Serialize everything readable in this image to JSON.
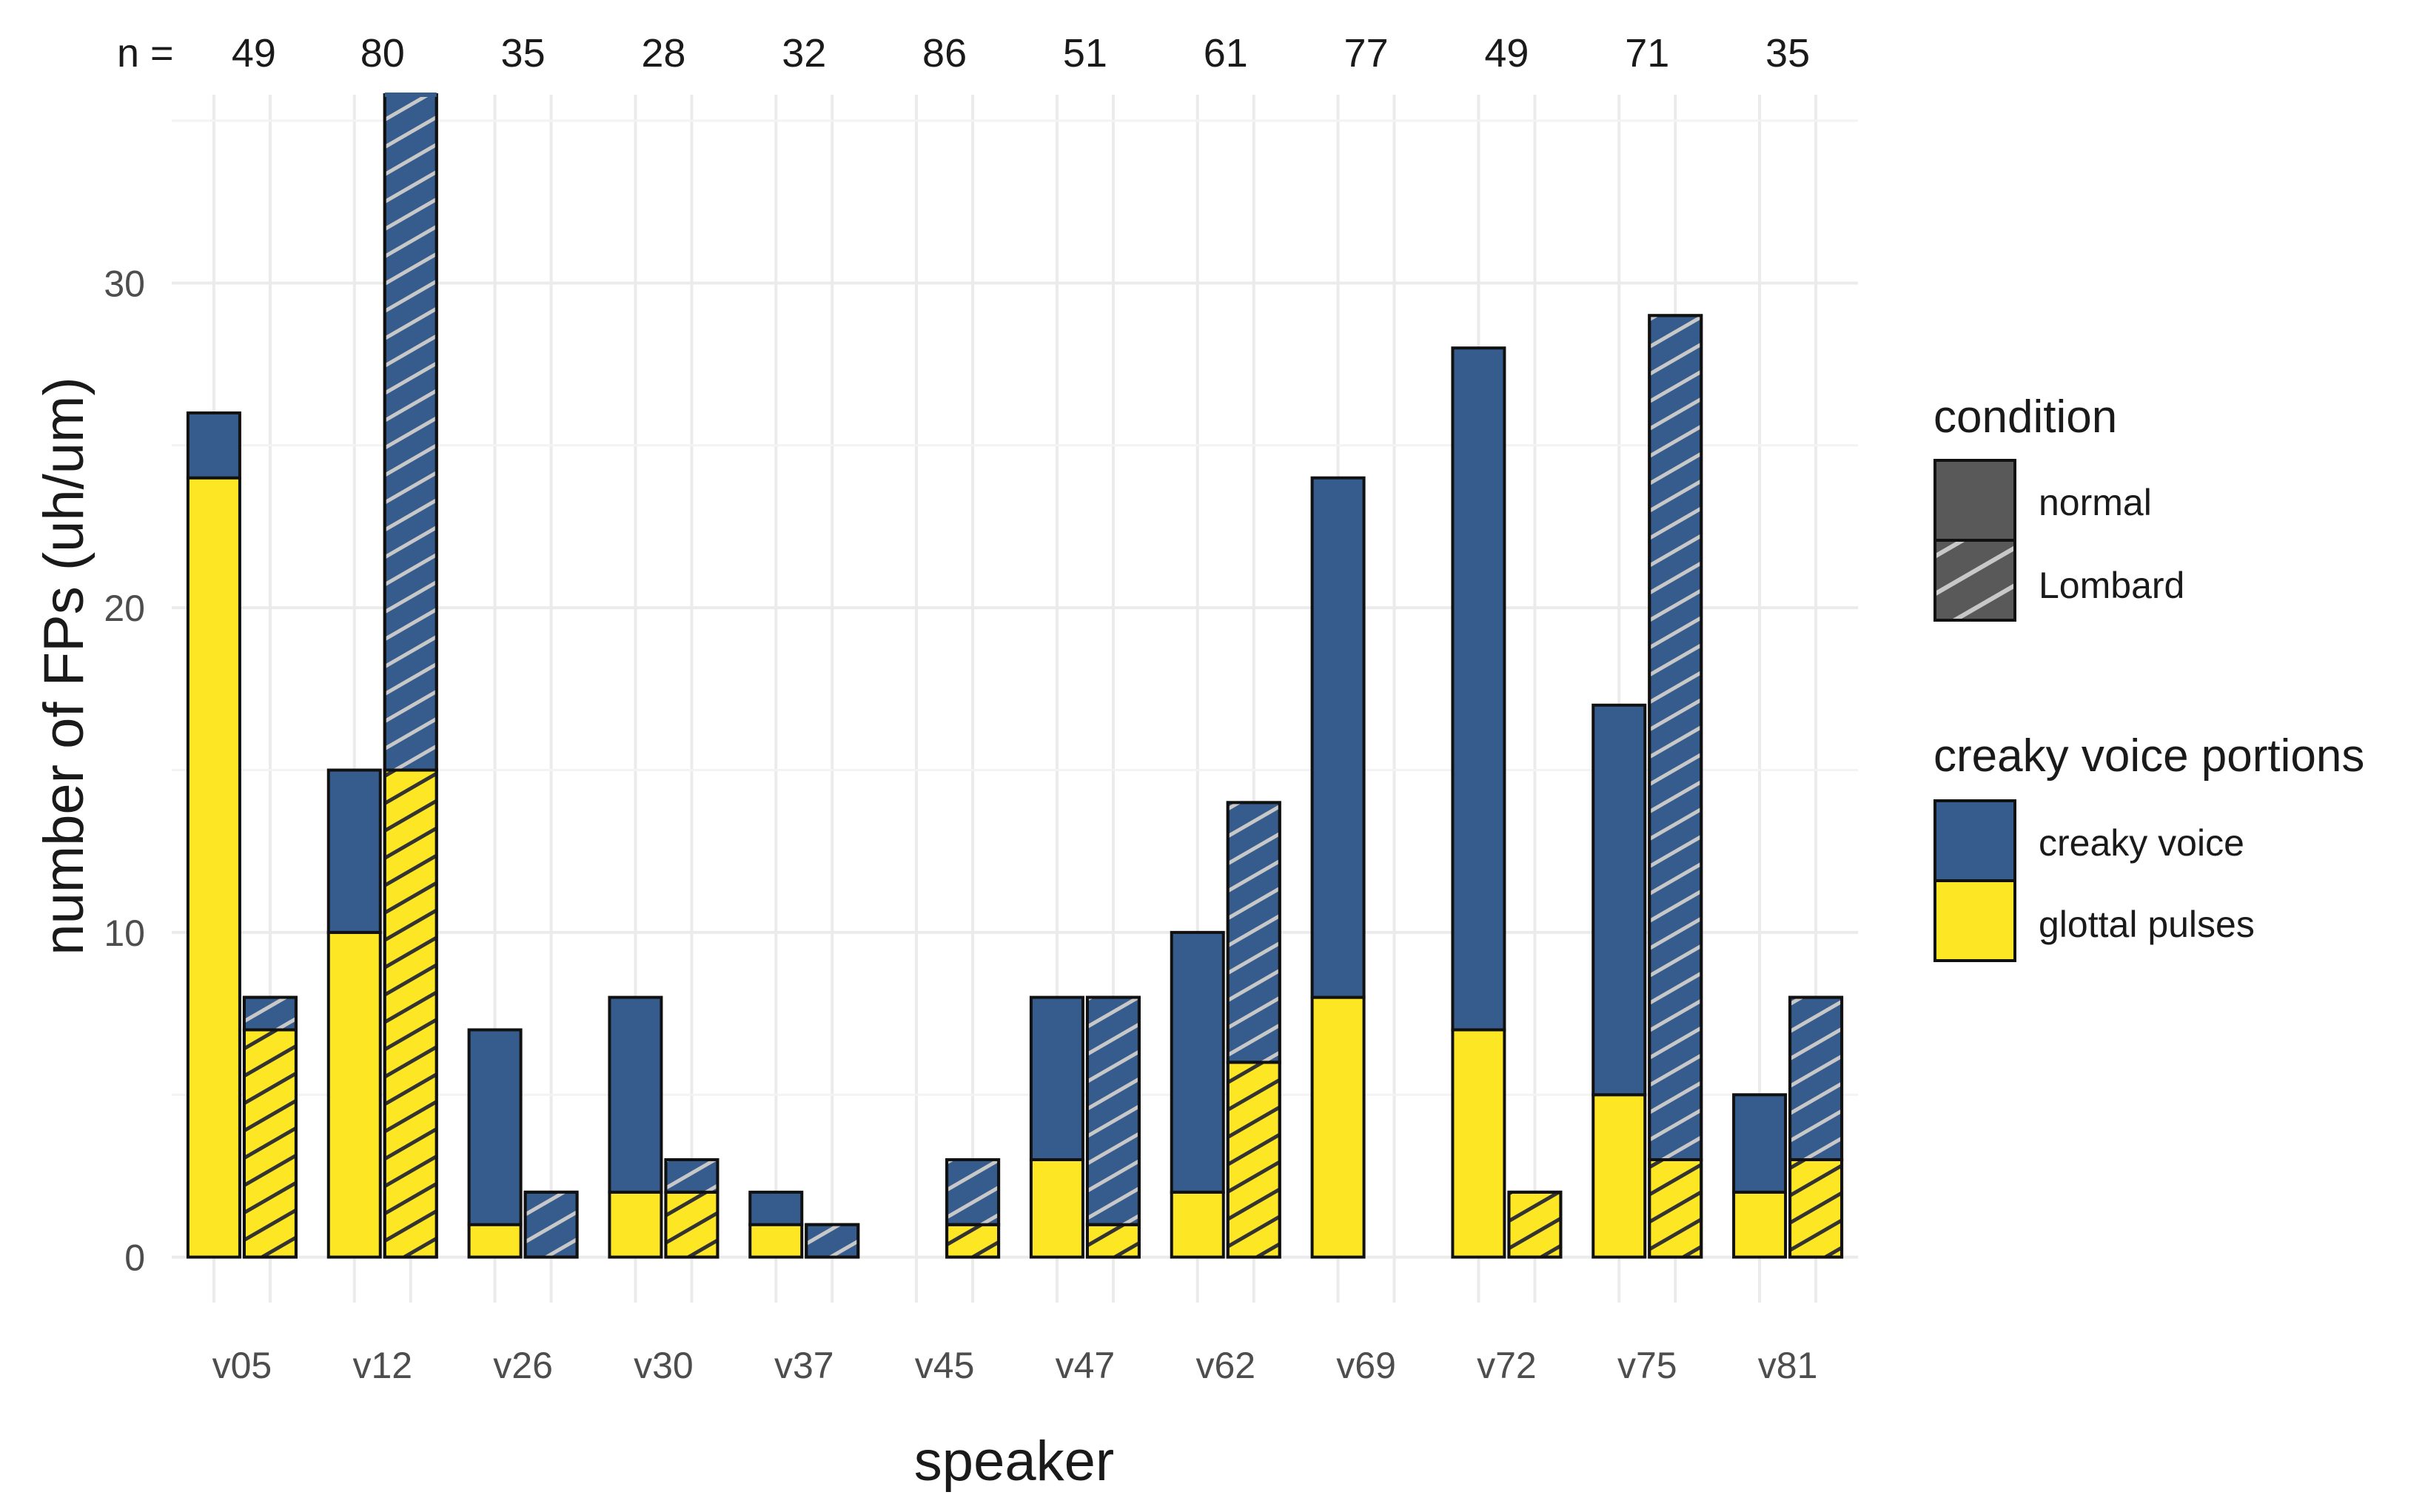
{
  "chart_data": {
    "type": "bar",
    "subtype": "stacked-dodged",
    "categories": [
      "v05",
      "v12",
      "v26",
      "v30",
      "v37",
      "v45",
      "v47",
      "v62",
      "v69",
      "v72",
      "v75",
      "v81"
    ],
    "n_prefix": "n =",
    "n_values": [
      "49",
      "80",
      "35",
      "28",
      "32",
      "86",
      "51",
      "61",
      "77",
      "49",
      "71",
      "35"
    ],
    "xlabel": "speaker",
    "ylabel": "number of FPs (uh/um)",
    "ylim": [
      -1.4,
      35.8
    ],
    "yticks": [
      "0",
      "10",
      "20",
      "30"
    ],
    "conditions": [
      "normal",
      "Lombard"
    ],
    "portions": [
      "creaky voice",
      "glottal pulses"
    ],
    "colors": {
      "creaky voice": "#365c8d",
      "glottal pulses": "#fde725",
      "legend_gray": "#595959",
      "hatch": "#c8c8c8"
    },
    "series": [
      {
        "name": "glottal pulses",
        "condition": "normal",
        "values": [
          24,
          10,
          1,
          2,
          1,
          0,
          3,
          2,
          8,
          7,
          5,
          2
        ]
      },
      {
        "name": "creaky voice",
        "condition": "normal",
        "values": [
          2,
          5,
          6,
          6,
          1,
          0,
          5,
          8,
          16,
          21,
          12,
          3
        ]
      },
      {
        "name": "glottal pulses",
        "condition": "Lombard",
        "values": [
          7,
          15,
          0,
          2,
          0,
          1,
          1,
          6,
          0,
          2,
          3,
          3
        ]
      },
      {
        "name": "creaky voice",
        "condition": "Lombard",
        "values": [
          1,
          21,
          2,
          1,
          1,
          2,
          7,
          8,
          0,
          0,
          26,
          5
        ]
      }
    ],
    "legend": {
      "condition_title": "condition",
      "condition_items": [
        "normal",
        "Lombard"
      ],
      "portion_title": "creaky voice portions",
      "portion_items": [
        "creaky voice",
        "glottal pulses"
      ],
      "position": "right"
    },
    "grid": true
  }
}
